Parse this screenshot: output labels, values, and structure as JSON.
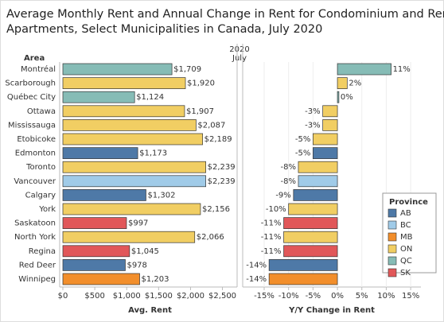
{
  "title": "Average Monthly Rent and Annual Change in Rent for Condominium and Rental Apartments, Select Municipalities in Canada, July 2020",
  "column_header": [
    "2020",
    "July"
  ],
  "row_header": "Area",
  "legend": {
    "title": "Province",
    "items": [
      {
        "name": "AB",
        "color": "#4e79a7"
      },
      {
        "name": "BC",
        "color": "#a0cbe8"
      },
      {
        "name": "MB",
        "color": "#f28e2b"
      },
      {
        "name": "ON",
        "color": "#f1ce63"
      },
      {
        "name": "QC",
        "color": "#86bcb6"
      },
      {
        "name": "SK",
        "color": "#e15759"
      }
    ]
  },
  "chart_data": [
    {
      "type": "bar",
      "orientation": "horizontal",
      "xlabel": "Avg. Rent",
      "categories": [
        "Montréal",
        "Scarborough",
        "Québec City",
        "Ottawa",
        "Mississauga",
        "Etobicoke",
        "Edmonton",
        "Toronto",
        "Vancouver",
        "Calgary",
        "York",
        "Saskatoon",
        "North York",
        "Regina",
        "Red Deer",
        "Winnipeg"
      ],
      "values": [
        1709,
        1920,
        1124,
        1907,
        2087,
        2189,
        1173,
        2239,
        2239,
        1302,
        2156,
        997,
        2066,
        1045,
        978,
        1203
      ],
      "value_labels": [
        "$1,709",
        "$1,920",
        "$1,124",
        "$1,907",
        "$2,087",
        "$2,189",
        "$1,173",
        "$2,239",
        "$2,239",
        "$1,302",
        "$2,156",
        "$997",
        "$2,066",
        "$1,045",
        "$978",
        "$1,203"
      ],
      "colors": [
        "#86bcb6",
        "#f1ce63",
        "#86bcb6",
        "#f1ce63",
        "#f1ce63",
        "#f1ce63",
        "#4e79a7",
        "#f1ce63",
        "#a0cbe8",
        "#4e79a7",
        "#f1ce63",
        "#e15759",
        "#f1ce63",
        "#e15759",
        "#4e79a7",
        "#f28e2b"
      ],
      "xlim": [
        0,
        2730
      ],
      "xticks": [
        {
          "value": 0,
          "label": "$0"
        },
        {
          "value": 500,
          "label": "$500"
        },
        {
          "value": 1000,
          "label": "$1,000"
        },
        {
          "value": 1500,
          "label": "$1,500"
        },
        {
          "value": 2000,
          "label": "$2,000"
        },
        {
          "value": 2500,
          "label": "$2,500"
        }
      ]
    },
    {
      "type": "bar",
      "orientation": "horizontal",
      "xlabel": "Y/Y Change in Rent",
      "values": [
        11,
        2,
        0.3,
        -3,
        -3,
        -5,
        -5,
        -8,
        -8,
        -9,
        -10,
        -11,
        -11,
        -11,
        -14,
        -14
      ],
      "value_labels": [
        "11%",
        "2%",
        "0%",
        "-3%",
        "-3%",
        "-5%",
        "-5%",
        "-8%",
        "-8%",
        "-9%",
        "-10%",
        "-11%",
        "-11%",
        "-11%",
        "-14%",
        "-14%"
      ],
      "colors": [
        "#86bcb6",
        "#f1ce63",
        "#86bcb6",
        "#f1ce63",
        "#f1ce63",
        "#f1ce63",
        "#4e79a7",
        "#f1ce63",
        "#a0cbe8",
        "#4e79a7",
        "#f1ce63",
        "#e15759",
        "#f1ce63",
        "#e15759",
        "#4e79a7",
        "#f28e2b"
      ],
      "xlim": [
        -19.4,
        17.1
      ],
      "xticks": [
        {
          "value": -15,
          "label": "-15%"
        },
        {
          "value": -10,
          "label": "-10%"
        },
        {
          "value": -5,
          "label": "-5%"
        },
        {
          "value": 0,
          "label": "0%"
        },
        {
          "value": 5,
          "label": "5%"
        },
        {
          "value": 10,
          "label": "10%"
        },
        {
          "value": 15,
          "label": "15%"
        }
      ]
    }
  ]
}
